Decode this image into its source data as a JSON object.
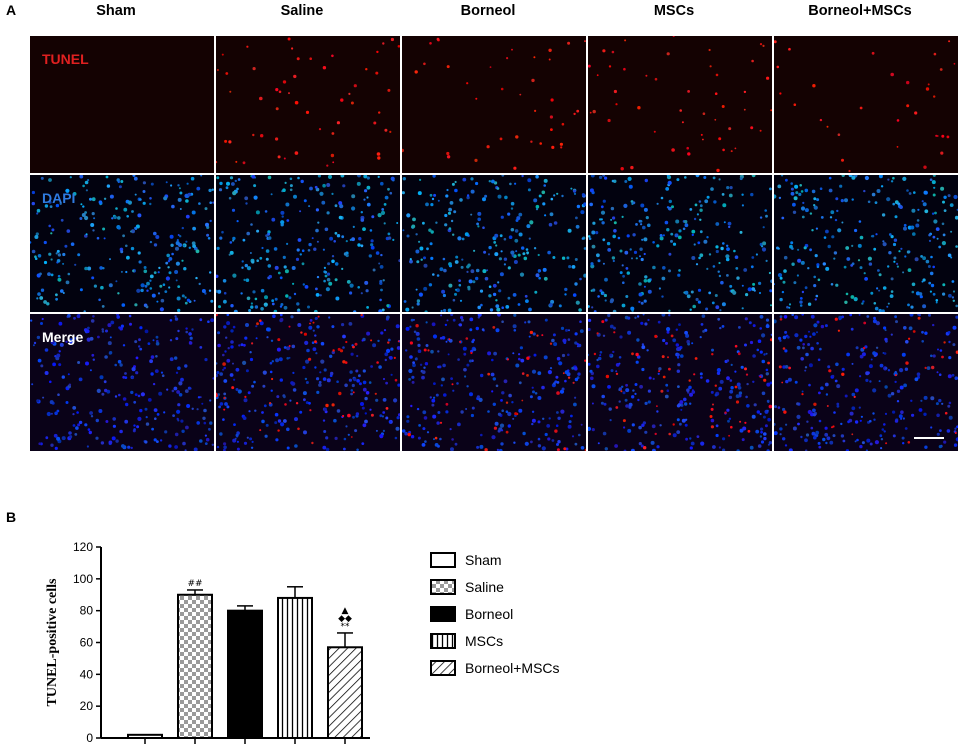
{
  "panel_a": {
    "letter": "A",
    "columns": [
      "Sham",
      "Saline",
      "Borneol",
      "MSCs",
      "Borneol+MSCs"
    ],
    "rows": [
      {
        "label": "TUNEL",
        "label_color": "#e02020",
        "channel": "tunel"
      },
      {
        "label": "DAPI",
        "label_color": "#2f7be0",
        "channel": "dapi"
      },
      {
        "label": "Merge",
        "label_color": "#ffffff",
        "channel": "merge"
      }
    ],
    "red_cell_density": [
      0.0,
      1.0,
      0.7,
      0.9,
      0.6
    ]
  },
  "panel_b": {
    "letter": "B"
  },
  "chart_data": {
    "type": "bar",
    "categories": [
      "Sham",
      "Saline",
      "Borneol",
      "MSCs",
      "Borneol+MSCs"
    ],
    "values": [
      2,
      90,
      80,
      88,
      57
    ],
    "errors": [
      0,
      3,
      3,
      7,
      9
    ],
    "patterns": [
      "open",
      "checker",
      "solid",
      "vertical-lines",
      "diagonal-hatch"
    ],
    "annotations": [
      "",
      "##",
      "",
      "",
      "▲\n◆◆\n**"
    ],
    "ylabel": "TUNEL-positive cells",
    "ylim": [
      0,
      120
    ],
    "yticks": [
      0,
      20,
      40,
      60,
      80,
      100,
      120
    ],
    "legend": [
      "Sham",
      "Saline",
      "Borneol",
      "MSCs",
      "Borneol+MSCs"
    ],
    "legend_position": "right"
  }
}
